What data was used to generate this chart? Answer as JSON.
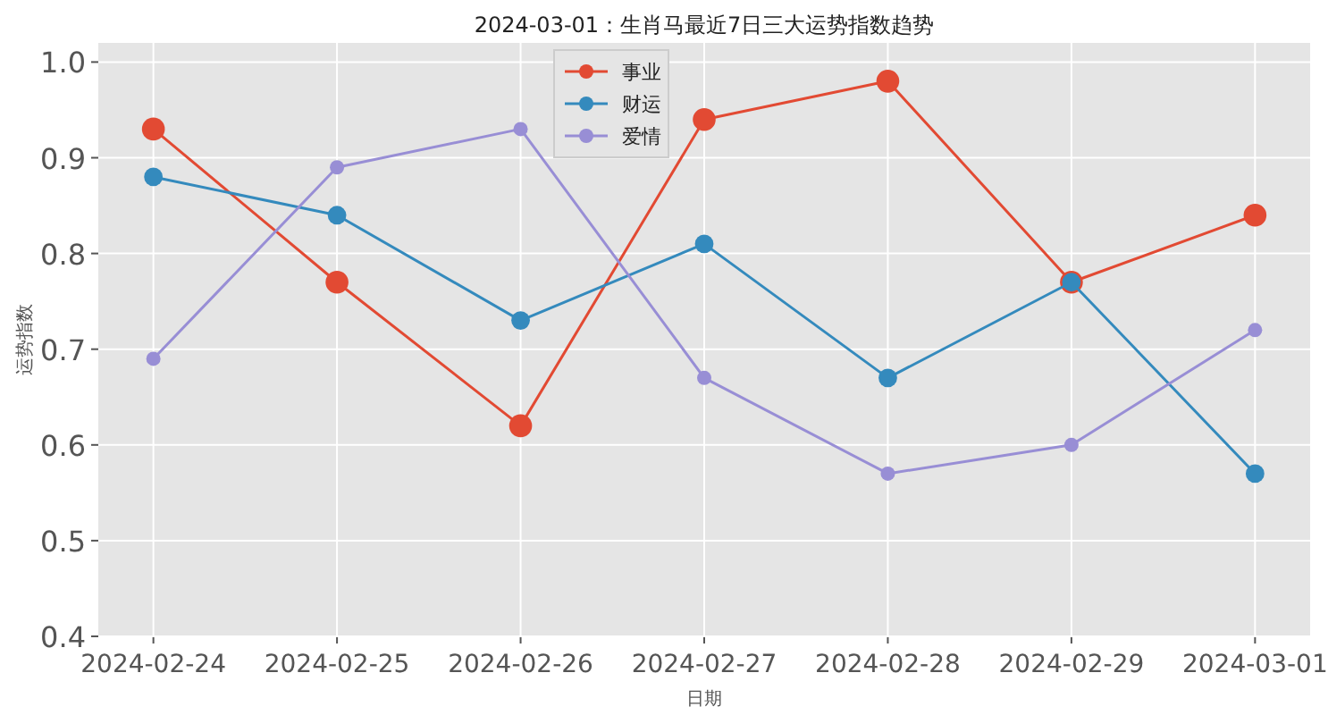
{
  "chart_data": {
    "type": "line",
    "title": "2024-03-01：生肖马最近7日三大运势指数趋势",
    "xlabel": "日期",
    "ylabel": "运势指数",
    "categories": [
      "2024-02-24",
      "2024-02-25",
      "2024-02-26",
      "2024-02-27",
      "2024-02-28",
      "2024-02-29",
      "2024-03-01"
    ],
    "series": [
      {
        "name": "事业",
        "color": "#e24a33",
        "values": [
          0.93,
          0.77,
          0.62,
          0.94,
          0.98,
          0.77,
          0.84
        ]
      },
      {
        "name": "财运",
        "color": "#348abd",
        "values": [
          0.88,
          0.84,
          0.73,
          0.81,
          0.67,
          0.77,
          0.57
        ]
      },
      {
        "name": "爱情",
        "color": "#988ed5",
        "values": [
          0.69,
          0.89,
          0.93,
          0.67,
          0.57,
          0.6,
          0.72
        ]
      }
    ],
    "ylim": [
      0.4,
      1.02
    ],
    "yticks": [
      {
        "value": 0.4,
        "label": "0.4"
      },
      {
        "value": 0.5,
        "label": "0.5"
      },
      {
        "value": 0.6,
        "label": "0.6"
      },
      {
        "value": 0.7,
        "label": "0.7"
      },
      {
        "value": 0.8,
        "label": "0.8"
      },
      {
        "value": 0.9,
        "label": "0.9"
      },
      {
        "value": 1,
        "label": "1.0"
      }
    ],
    "grid": true,
    "legend": "top",
    "marker": "circle"
  }
}
